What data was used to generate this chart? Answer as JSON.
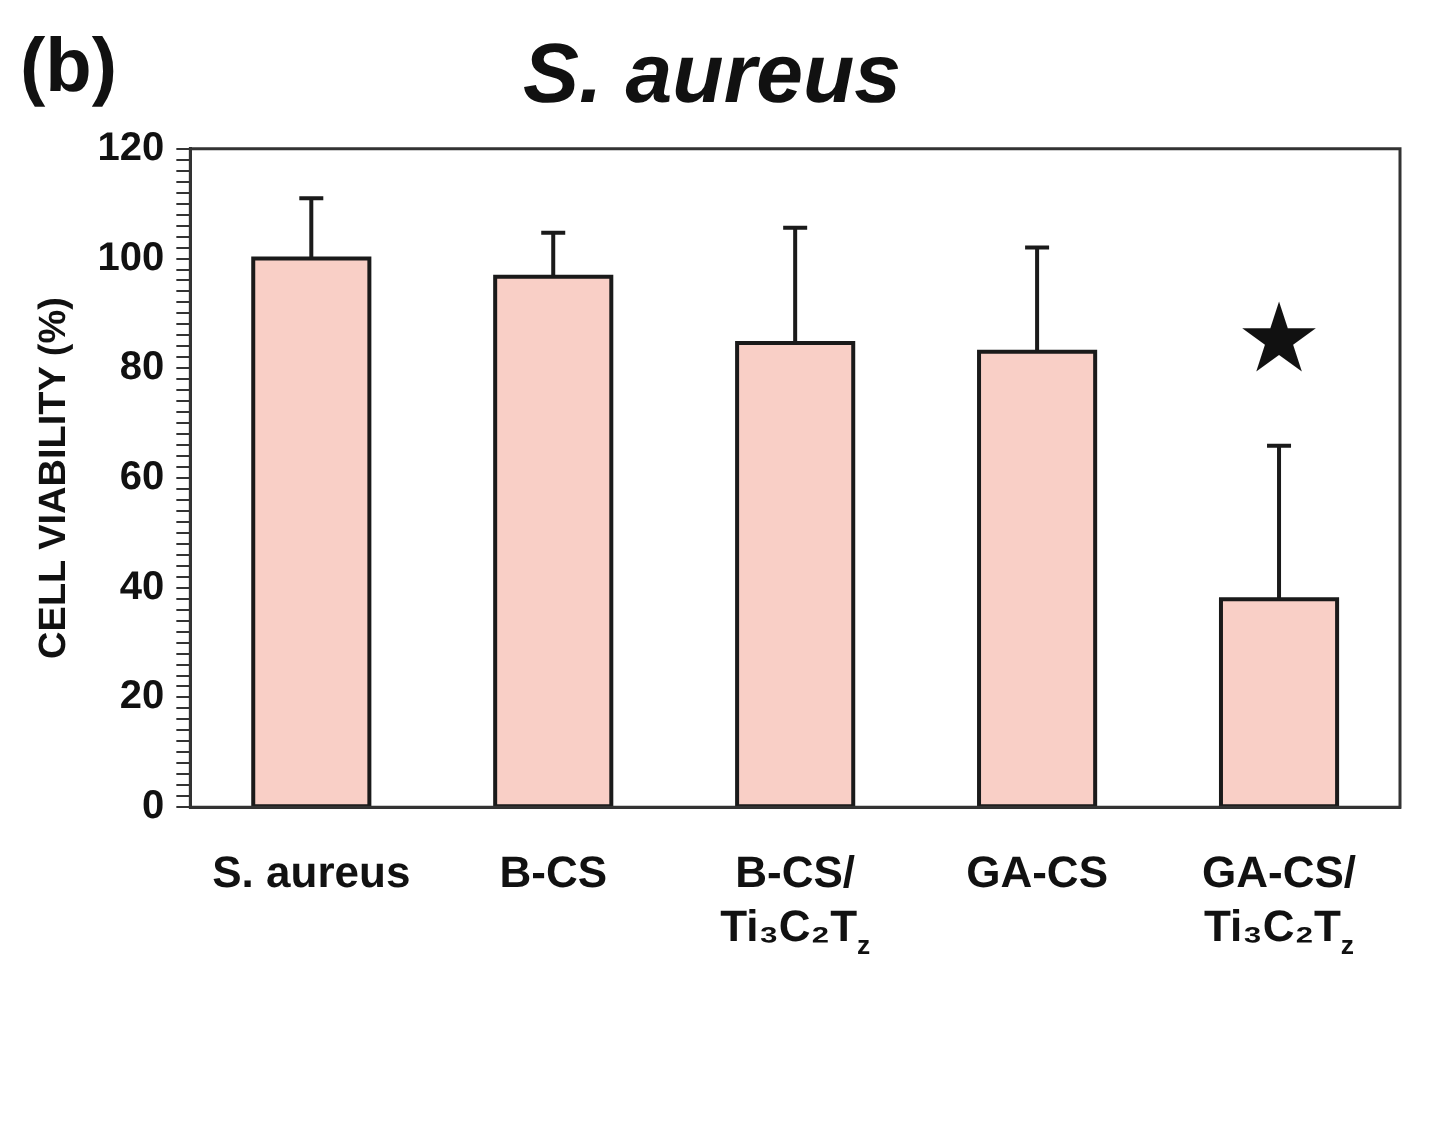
{
  "chart_data": {
    "type": "bar",
    "title": "S. aureus",
    "ylabel": "CELL VIABILITY (%)",
    "categories": [
      "S. aureus",
      "B-CS",
      "B-CS/Ti₃C₂T$_{z}$",
      "GA-CS",
      "GA-CS/Ti₃C₂T$_{z}$"
    ],
    "values": [
      100,
      96.7,
      84.6,
      83,
      37.9
    ],
    "errors": [
      11,
      8,
      21,
      19,
      28
    ],
    "color": "#f9cfc6",
    "ylim": [
      0,
      120
    ],
    "yticks": [
      0,
      {
        "value": 2,
        "label": null
      },
      {
        "value": 4,
        "label": null
      },
      {
        "value": 6,
        "label": null
      },
      {
        "value": 8,
        "label": null
      },
      {
        "value": 10,
        "label": null
      },
      {
        "value": 12,
        "label": null
      },
      {
        "value": 14,
        "label": null
      },
      {
        "value": 16,
        "label": null
      },
      {
        "value": 18,
        "label": null
      },
      20,
      {
        "value": 22,
        "label": null
      },
      {
        "value": 24,
        "label": null
      },
      {
        "value": 26,
        "label": null
      },
      {
        "value": 28,
        "label": null
      },
      {
        "value": 30,
        "label": null
      },
      {
        "value": 32,
        "label": null
      },
      {
        "value": 34,
        "label": null
      },
      {
        "value": 36,
        "label": null
      },
      {
        "value": 38,
        "label": null
      },
      40,
      {
        "value": 42,
        "label": null
      },
      {
        "value": 44,
        "label": null
      },
      {
        "value": 46,
        "label": null
      },
      {
        "value": 48,
        "label": null
      },
      {
        "value": 50,
        "label": null
      },
      {
        "value": 52,
        "label": null
      },
      {
        "value": 54,
        "label": null
      },
      {
        "value": 56,
        "label": null
      },
      {
        "value": 58,
        "label": null
      },
      60,
      {
        "value": 62,
        "label": null
      },
      {
        "value": 64,
        "label": null
      },
      {
        "value": 66,
        "label": null
      },
      {
        "value": 68,
        "label": null
      },
      {
        "value": 70,
        "label": null
      },
      {
        "value": 72,
        "label": null
      },
      {
        "value": 74,
        "label": null
      },
      {
        "value": 76,
        "label": null
      },
      {
        "value": 78,
        "label": null
      },
      80,
      {
        "value": 82,
        "label": null
      },
      {
        "value": 84,
        "label": null
      },
      {
        "value": 86,
        "label": null
      },
      {
        "value": 88,
        "label": null
      },
      {
        "value": 90,
        "label": null
      },
      {
        "value": 92,
        "label": null
      },
      {
        "value": 94,
        "label": null
      },
      {
        "value": 96,
        "label": null
      },
      {
        "value": 98,
        "label": null
      },
      100,
      {
        "value": 102,
        "label": null
      },
      {
        "value": 104,
        "label": null
      },
      {
        "value": 106,
        "label": null
      },
      {
        "value": 108,
        "label": null
      },
      {
        "value": 110,
        "label": null
      },
      {
        "value": 112,
        "label": null
      },
      {
        "value": 114,
        "label": null
      },
      {
        "value": 116,
        "label": null
      },
      {
        "value": 118,
        "label": null
      },
      120
    ],
    "grid": false,
    "legend": false,
    "annotations": [
      "(b)",
      "★"
    ]
  }
}
